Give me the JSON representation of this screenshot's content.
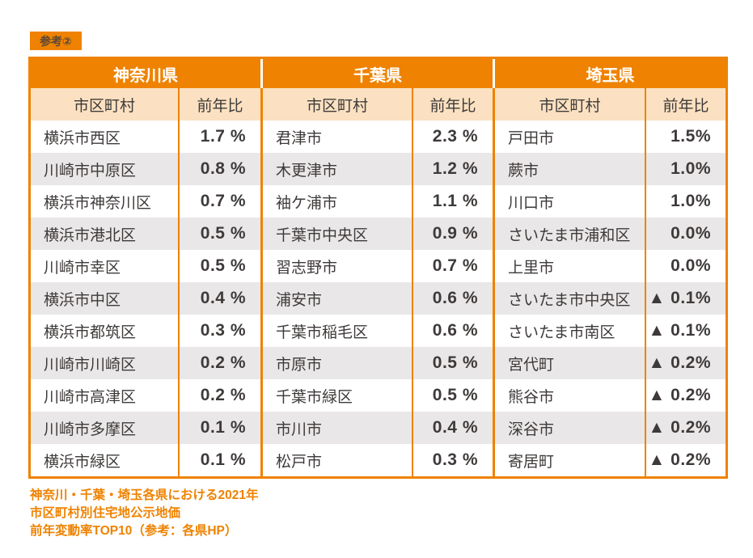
{
  "badge": {
    "label": "参考②"
  },
  "table": {
    "groups": [
      {
        "prefecture": "神奈川県",
        "col_headers": [
          "市区町村",
          "前年比"
        ],
        "rows": [
          {
            "name": "横浜市西区",
            "rate": "1.7 %"
          },
          {
            "name": "川崎市中原区",
            "rate": "0.8 %"
          },
          {
            "name": "横浜市神奈川区",
            "rate": "0.7 %"
          },
          {
            "name": "横浜市港北区",
            "rate": "0.5 %"
          },
          {
            "name": "川崎市幸区",
            "rate": "0.5 %"
          },
          {
            "name": "横浜市中区",
            "rate": "0.4 %"
          },
          {
            "name": "横浜市都筑区",
            "rate": "0.3 %"
          },
          {
            "name": "川崎市川崎区",
            "rate": "0.2 %"
          },
          {
            "name": "川崎市高津区",
            "rate": "0.2 %"
          },
          {
            "name": "川崎市多摩区",
            "rate": "0.1 %"
          },
          {
            "name": "横浜市緑区",
            "rate": "0.1 %"
          }
        ]
      },
      {
        "prefecture": "千葉県",
        "col_headers": [
          "市区町村",
          "前年比"
        ],
        "rows": [
          {
            "name": "君津市",
            "rate": "2.3 %"
          },
          {
            "name": "木更津市",
            "rate": "1.2 %"
          },
          {
            "name": "袖ケ浦市",
            "rate": "1.1 %"
          },
          {
            "name": "千葉市中央区",
            "rate": "0.9 %"
          },
          {
            "name": "習志野市",
            "rate": "0.7 %"
          },
          {
            "name": "浦安市",
            "rate": "0.6 %"
          },
          {
            "name": "千葉市稲毛区",
            "rate": "0.6 %"
          },
          {
            "name": "市原市",
            "rate": "0.5 %"
          },
          {
            "name": "千葉市緑区",
            "rate": "0.5 %"
          },
          {
            "name": "市川市",
            "rate": "0.4 %"
          },
          {
            "name": "松戸市",
            "rate": "0.3 %"
          }
        ]
      },
      {
        "prefecture": "埼玉県",
        "col_headers": [
          "市区町村",
          "前年比"
        ],
        "rows": [
          {
            "name": "戸田市",
            "rate": "1.5%"
          },
          {
            "name": "蕨市",
            "rate": "1.0%"
          },
          {
            "name": "川口市",
            "rate": "1.0%"
          },
          {
            "name": "さいたま市浦和区",
            "rate": "0.0%"
          },
          {
            "name": "上里市",
            "rate": "0.0%"
          },
          {
            "name": "さいたま市中央区",
            "rate": "▲ 0.1%"
          },
          {
            "name": "さいたま市南区",
            "rate": "▲ 0.1%"
          },
          {
            "name": "宮代町",
            "rate": "▲ 0.2%"
          },
          {
            "name": "熊谷市",
            "rate": "▲ 0.2%"
          },
          {
            "name": "深谷市",
            "rate": "▲ 0.2%"
          },
          {
            "name": "寄居町",
            "rate": "▲ 0.2%"
          }
        ]
      }
    ]
  },
  "footer": {
    "lines": [
      "神奈川・千葉・埼玉各県における2021年",
      "市区町村別住宅地公示地価",
      "前年変動率TOP10（参考：各県HP）"
    ]
  },
  "colors": {
    "orange": "#ef8200",
    "peach": "#fbe1c1",
    "stripe_gray": "#e9e7e7",
    "body_text": "#3e3a39",
    "header_text": "#ffffff",
    "badge_text": "#5a4737"
  },
  "chart_data": {
    "type": "table",
    "title": "神奈川・千葉・埼玉各県における2021年 市区町村別住宅地公示地価 前年変動率TOP10（参考：各県HP）",
    "columns": [
      "市区町村",
      "前年比"
    ],
    "note": "▲ indicates negative year-over-year change",
    "groups": [
      {
        "prefecture": "神奈川県",
        "rows": [
          [
            "横浜市西区",
            1.7
          ],
          [
            "川崎市中原区",
            0.8
          ],
          [
            "横浜市神奈川区",
            0.7
          ],
          [
            "横浜市港北区",
            0.5
          ],
          [
            "川崎市幸区",
            0.5
          ],
          [
            "横浜市中区",
            0.4
          ],
          [
            "横浜市都筑区",
            0.3
          ],
          [
            "川崎市川崎区",
            0.2
          ],
          [
            "川崎市高津区",
            0.2
          ],
          [
            "川崎市多摩区",
            0.1
          ],
          [
            "横浜市緑区",
            0.1
          ]
        ]
      },
      {
        "prefecture": "千葉県",
        "rows": [
          [
            "君津市",
            2.3
          ],
          [
            "木更津市",
            1.2
          ],
          [
            "袖ケ浦市",
            1.1
          ],
          [
            "千葉市中央区",
            0.9
          ],
          [
            "習志野市",
            0.7
          ],
          [
            "浦安市",
            0.6
          ],
          [
            "千葉市稲毛区",
            0.6
          ],
          [
            "市原市",
            0.5
          ],
          [
            "千葉市緑区",
            0.5
          ],
          [
            "市川市",
            0.4
          ],
          [
            "松戸市",
            0.3
          ]
        ]
      },
      {
        "prefecture": "埼玉県",
        "rows": [
          [
            "戸田市",
            1.5
          ],
          [
            "蕨市",
            1.0
          ],
          [
            "川口市",
            1.0
          ],
          [
            "さいたま市浦和区",
            0.0
          ],
          [
            "上里市",
            0.0
          ],
          [
            "さいたま市中央区",
            -0.1
          ],
          [
            "さいたま市南区",
            -0.1
          ],
          [
            "宮代町",
            -0.2
          ],
          [
            "熊谷市",
            -0.2
          ],
          [
            "深谷市",
            -0.2
          ],
          [
            "寄居町",
            -0.2
          ]
        ]
      }
    ]
  }
}
